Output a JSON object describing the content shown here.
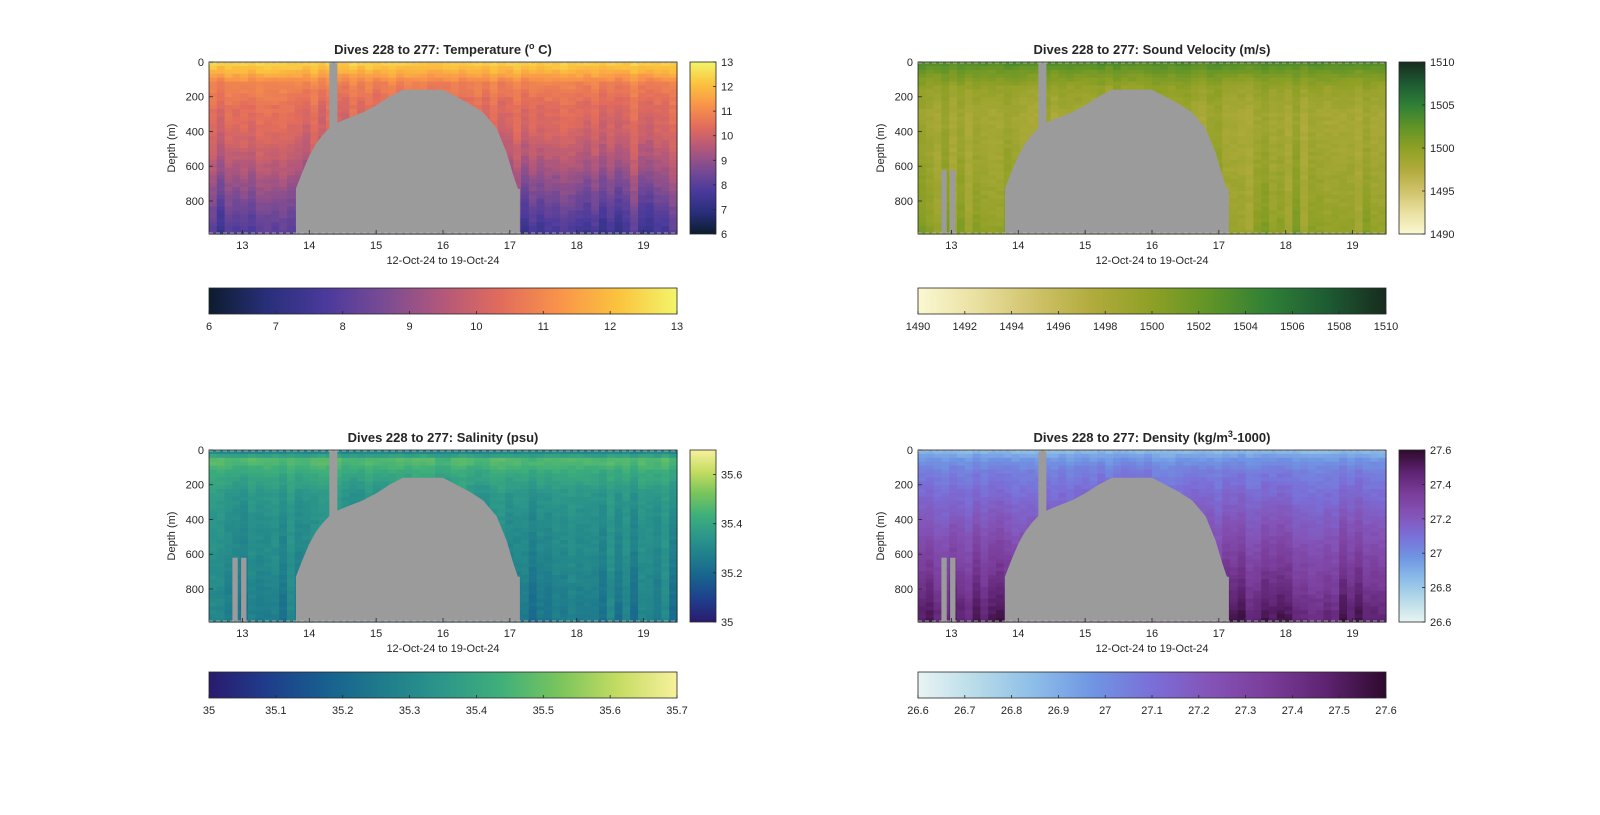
{
  "chart_data": [
    {
      "type": "heatmap",
      "title_main": "Dives 228 to 277: Temperature (",
      "title_sup": "o",
      "title_tail": " C)",
      "xlabel": "12-Oct-24 to 19-Oct-24",
      "ylabel": "Depth (m)",
      "x_ticks": [
        "13",
        "14",
        "15",
        "16",
        "17",
        "18",
        "19"
      ],
      "x_tick_values": [
        13,
        14,
        15,
        16,
        17,
        18,
        19
      ],
      "xlim": [
        12.5,
        19.5
      ],
      "y_ticks": [
        "0",
        "200",
        "400",
        "600",
        "800"
      ],
      "y_tick_values": [
        0,
        200,
        400,
        600,
        800
      ],
      "ylim": [
        0,
        990
      ],
      "colorbar_range": [
        6,
        13
      ],
      "colorbar_ticks": [
        "6",
        "7",
        "8",
        "9",
        "10",
        "11",
        "12",
        "13"
      ],
      "colorbar_tick_values": [
        6,
        7,
        8,
        9,
        10,
        11,
        12,
        13
      ],
      "hcolorbar_ticks": [
        "6",
        "7",
        "8",
        "9",
        "10",
        "11",
        "12",
        "13"
      ],
      "colormap": [
        "#0c1c2e",
        "#292f7a",
        "#4a3a9c",
        "#7a4b94",
        "#b3587a",
        "#e26c5c",
        "#f9944a",
        "#fbc33e",
        "#f2f56a"
      ],
      "profile": [
        [
          0,
          12.4
        ],
        [
          60,
          11.8
        ],
        [
          120,
          10.9
        ],
        [
          250,
          10.4
        ],
        [
          400,
          10.1
        ],
        [
          550,
          9.6
        ],
        [
          700,
          8.9
        ],
        [
          850,
          8.2
        ],
        [
          990,
          7.6
        ]
      ],
      "seafloor": [
        [
          13.8,
          730
        ],
        [
          13.9,
          630
        ],
        [
          14.0,
          540
        ],
        [
          14.1,
          470
        ],
        [
          14.2,
          420
        ],
        [
          14.35,
          360
        ],
        [
          14.6,
          320
        ],
        [
          14.8,
          290
        ],
        [
          15.0,
          250
        ],
        [
          15.2,
          200
        ],
        [
          15.4,
          160
        ],
        [
          16.0,
          160
        ],
        [
          16.2,
          200
        ],
        [
          16.4,
          240
        ],
        [
          16.6,
          290
        ],
        [
          16.8,
          380
        ],
        [
          16.95,
          520
        ],
        [
          17.05,
          650
        ],
        [
          17.12,
          730
        ]
      ],
      "seafloor_end": 17.15,
      "gap_columns": [
        [
          14.3,
          14.42
        ]
      ]
    },
    {
      "type": "heatmap",
      "title_main": "Dives 228 to 277: Sound Velocity (m/s)",
      "title_sup": "",
      "title_tail": "",
      "xlabel": "12-Oct-24 to 19-Oct-24",
      "ylabel": "Depth (m)",
      "x_ticks": [
        "13",
        "14",
        "15",
        "16",
        "17",
        "18",
        "19"
      ],
      "x_tick_values": [
        13,
        14,
        15,
        16,
        17,
        18,
        19
      ],
      "xlim": [
        12.5,
        19.5
      ],
      "y_ticks": [
        "0",
        "200",
        "400",
        "600",
        "800"
      ],
      "y_tick_values": [
        0,
        200,
        400,
        600,
        800
      ],
      "ylim": [
        0,
        990
      ],
      "colorbar_range": [
        1490,
        1510
      ],
      "colorbar_ticks": [
        "1490",
        "1495",
        "1500",
        "1505",
        "1510"
      ],
      "colorbar_tick_values": [
        1490,
        1495,
        1500,
        1505,
        1510
      ],
      "hcolorbar_ticks": [
        "1490",
        "1492",
        "1494",
        "1496",
        "1498",
        "1500",
        "1502",
        "1504",
        "1506",
        "1508",
        "1510"
      ],
      "colormap": [
        "#fbf8d2",
        "#e9e0a0",
        "#cfc26a",
        "#b0ab3c",
        "#8ea025",
        "#5f9427",
        "#2f7f36",
        "#1d5b33",
        "#172b1e"
      ],
      "profile": [
        [
          0,
          1503.5
        ],
        [
          60,
          1501.5
        ],
        [
          150,
          1499.5
        ],
        [
          300,
          1498.5
        ],
        [
          500,
          1498.8
        ],
        [
          700,
          1499.3
        ],
        [
          850,
          1499.6
        ],
        [
          990,
          1500.2
        ]
      ],
      "seafloor": [
        [
          13.8,
          730
        ],
        [
          13.9,
          630
        ],
        [
          14.0,
          540
        ],
        [
          14.1,
          470
        ],
        [
          14.2,
          420
        ],
        [
          14.35,
          360
        ],
        [
          14.6,
          320
        ],
        [
          14.8,
          290
        ],
        [
          15.0,
          250
        ],
        [
          15.2,
          200
        ],
        [
          15.4,
          160
        ],
        [
          16.0,
          160
        ],
        [
          16.2,
          200
        ],
        [
          16.4,
          240
        ],
        [
          16.6,
          290
        ],
        [
          16.8,
          380
        ],
        [
          16.95,
          520
        ],
        [
          17.05,
          650
        ],
        [
          17.12,
          730
        ]
      ],
      "seafloor_end": 17.15,
      "gap_columns": [
        [
          14.3,
          14.42
        ],
        [
          12.85,
          12.93
        ],
        [
          12.98,
          13.06
        ]
      ]
    },
    {
      "type": "heatmap",
      "title_main": "Dives 228 to 277: Salinity (psu)",
      "title_sup": "",
      "title_tail": "",
      "xlabel": "12-Oct-24 to 19-Oct-24",
      "ylabel": "Depth (m)",
      "x_ticks": [
        "13",
        "14",
        "15",
        "16",
        "17",
        "18",
        "19"
      ],
      "x_tick_values": [
        13,
        14,
        15,
        16,
        17,
        18,
        19
      ],
      "xlim": [
        12.5,
        19.5
      ],
      "y_ticks": [
        "0",
        "200",
        "400",
        "600",
        "800"
      ],
      "y_tick_values": [
        0,
        200,
        400,
        600,
        800
      ],
      "ylim": [
        0,
        990
      ],
      "colorbar_range": [
        35,
        35.7
      ],
      "colorbar_ticks": [
        "35",
        "35.2",
        "35.4",
        "35.6"
      ],
      "colorbar_tick_values": [
        35,
        35.2,
        35.4,
        35.6
      ],
      "hcolorbar_ticks": [
        "35",
        "35.1",
        "35.2",
        "35.3",
        "35.4",
        "35.5",
        "35.6",
        "35.7"
      ],
      "colormap": [
        "#2a1a6e",
        "#1f3d8c",
        "#17608f",
        "#1f7d8c",
        "#2c978a",
        "#3fb07a",
        "#7ac55c",
        "#c5dc62",
        "#f7f19c"
      ],
      "profile": [
        [
          0,
          35.25
        ],
        [
          60,
          35.48
        ],
        [
          120,
          35.42
        ],
        [
          250,
          35.35
        ],
        [
          400,
          35.32
        ],
        [
          600,
          35.3
        ],
        [
          800,
          35.27
        ],
        [
          990,
          35.25
        ]
      ],
      "seafloor": [
        [
          13.8,
          730
        ],
        [
          13.9,
          630
        ],
        [
          14.0,
          540
        ],
        [
          14.1,
          470
        ],
        [
          14.2,
          420
        ],
        [
          14.35,
          360
        ],
        [
          14.6,
          320
        ],
        [
          14.8,
          290
        ],
        [
          15.0,
          250
        ],
        [
          15.2,
          200
        ],
        [
          15.4,
          160
        ],
        [
          16.0,
          160
        ],
        [
          16.2,
          200
        ],
        [
          16.4,
          240
        ],
        [
          16.6,
          290
        ],
        [
          16.8,
          380
        ],
        [
          16.95,
          520
        ],
        [
          17.05,
          650
        ],
        [
          17.12,
          730
        ]
      ],
      "seafloor_end": 17.15,
      "gap_columns": [
        [
          14.3,
          14.42
        ],
        [
          12.85,
          12.93
        ],
        [
          12.98,
          13.06
        ]
      ]
    },
    {
      "type": "heatmap",
      "title_main": "Dives 228 to 277: Density (kg/m",
      "title_sup": "3",
      "title_tail": "-1000)",
      "xlabel": "12-Oct-24 to 19-Oct-24",
      "ylabel": "Depth (m)",
      "x_ticks": [
        "13",
        "14",
        "15",
        "16",
        "17",
        "18",
        "19"
      ],
      "x_tick_values": [
        13,
        14,
        15,
        16,
        17,
        18,
        19
      ],
      "xlim": [
        12.5,
        19.5
      ],
      "y_ticks": [
        "0",
        "200",
        "400",
        "600",
        "800"
      ],
      "y_tick_values": [
        0,
        200,
        400,
        600,
        800
      ],
      "ylim": [
        0,
        990
      ],
      "colorbar_range": [
        26.6,
        27.6
      ],
      "colorbar_ticks": [
        "26.6",
        "26.8",
        "27",
        "27.2",
        "27.4",
        "27.6"
      ],
      "colorbar_tick_values": [
        26.6,
        26.8,
        27,
        27.2,
        27.4,
        27.6
      ],
      "hcolorbar_ticks": [
        "26.6",
        "26.7",
        "26.8",
        "26.9",
        "27",
        "27.1",
        "27.2",
        "27.3",
        "27.4",
        "27.5",
        "27.6"
      ],
      "colormap": [
        "#e9f4f3",
        "#b7dbe8",
        "#8cbde8",
        "#6f95e3",
        "#7a6fd8",
        "#8453b7",
        "#7a3c99",
        "#5d2270",
        "#2e0a2c"
      ],
      "profile": [
        [
          0,
          26.85
        ],
        [
          60,
          26.98
        ],
        [
          120,
          27.05
        ],
        [
          250,
          27.12
        ],
        [
          400,
          27.2
        ],
        [
          600,
          27.3
        ],
        [
          800,
          27.4
        ],
        [
          990,
          27.5
        ]
      ],
      "seafloor": [
        [
          13.8,
          730
        ],
        [
          13.9,
          630
        ],
        [
          14.0,
          540
        ],
        [
          14.1,
          470
        ],
        [
          14.2,
          420
        ],
        [
          14.35,
          360
        ],
        [
          14.6,
          320
        ],
        [
          14.8,
          290
        ],
        [
          15.0,
          250
        ],
        [
          15.2,
          200
        ],
        [
          15.4,
          160
        ],
        [
          16.0,
          160
        ],
        [
          16.2,
          200
        ],
        [
          16.4,
          240
        ],
        [
          16.6,
          290
        ],
        [
          16.8,
          380
        ],
        [
          16.95,
          520
        ],
        [
          17.05,
          650
        ],
        [
          17.12,
          730
        ]
      ],
      "seafloor_end": 17.15,
      "gap_columns": [
        [
          14.3,
          14.42
        ],
        [
          12.85,
          12.93
        ],
        [
          12.98,
          13.06
        ]
      ]
    }
  ],
  "land_color": "#9b9b9b"
}
